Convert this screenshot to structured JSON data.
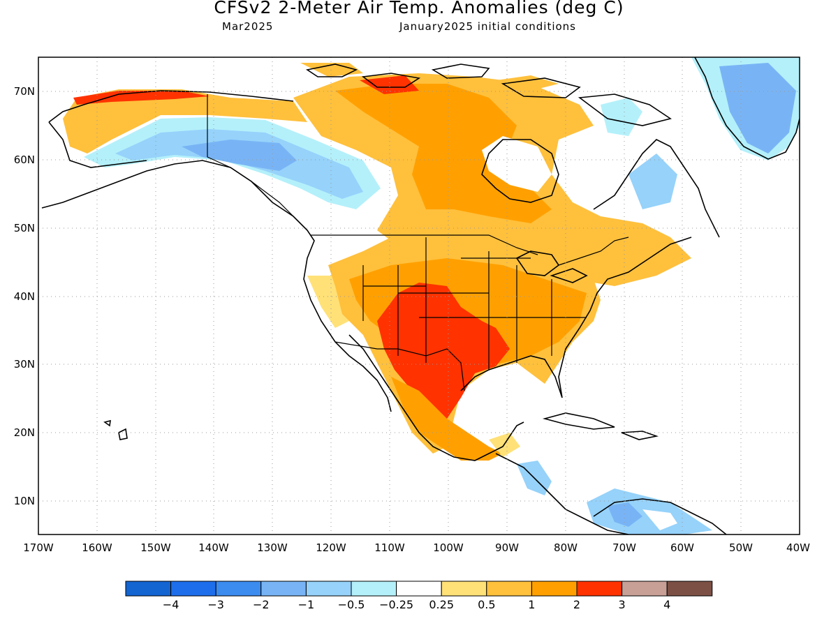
{
  "title": "CFSv2 2-Meter Air Temp. Anomalies (deg C)",
  "valid_month": "Mar2025",
  "initial_conditions": "January2025 initial conditions",
  "lat_labels": [
    "70N",
    "60N",
    "50N",
    "40N",
    "30N",
    "20N",
    "10N"
  ],
  "lon_labels": [
    "170W",
    "160W",
    "150W",
    "140W",
    "130W",
    "120W",
    "110W",
    "100W",
    "90W",
    "80W",
    "70W",
    "60W",
    "50W",
    "40W"
  ],
  "colorbar": {
    "labels": [
      "−4",
      "−3",
      "−2",
      "−1",
      "−0.5",
      "−0.25",
      "0.25",
      "0.5",
      "1",
      "2",
      "3",
      "4"
    ],
    "colors": [
      "#1464d2",
      "#1e6eeb",
      "#3c8cf0",
      "#78b4f5",
      "#96d2fa",
      "#b4f0fa",
      "#ffffff",
      "#ffe178",
      "#ffc03c",
      "#ffa000",
      "#ff3200",
      "#c8a096",
      "#7d5046"
    ]
  }
}
